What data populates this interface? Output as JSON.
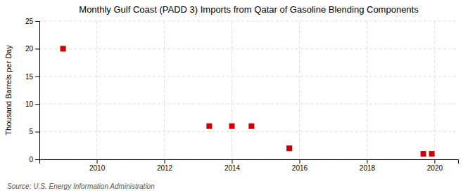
{
  "chart_data": {
    "type": "scatter",
    "title": "Monthly Gulf Coast (PADD 3) Imports from Qatar of Gasoline Blending Components",
    "ylabel": "Thousand Barrels per Day",
    "source": "Source: U.S. Energy Information Administration",
    "x": [
      2009.0,
      2013.33,
      2014.0,
      2014.58,
      2015.7,
      2019.67,
      2019.92
    ],
    "values": [
      20.0,
      6.0,
      6.0,
      6.0,
      2.0,
      1.0,
      1.0
    ],
    "color": "#cc0000",
    "marker": "square",
    "xlim": [
      2008.3,
      2020.7
    ],
    "ylim": [
      0,
      25
    ],
    "xticks": [
      2010,
      2012,
      2014,
      2016,
      2018,
      2020
    ],
    "yticks": [
      0,
      5,
      10,
      15,
      20,
      25
    ],
    "grid": true
  }
}
